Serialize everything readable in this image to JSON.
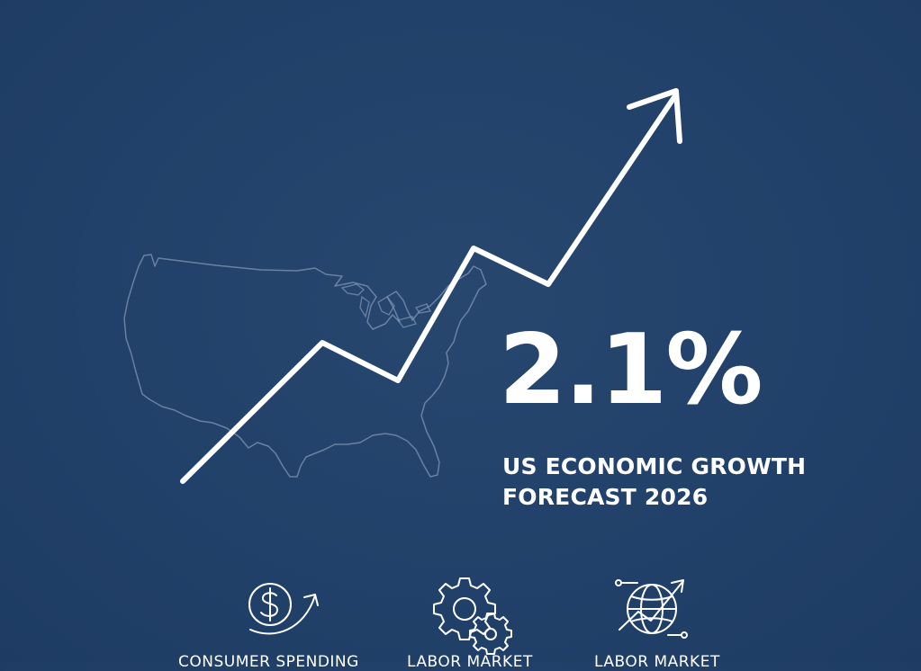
{
  "headline": {
    "value": "2.1%",
    "caption_line1": "US ECONOMIC GROWTH",
    "caption_line2": "FORECAST 2026"
  },
  "categories": [
    {
      "label": "CONSUMER SPENDING",
      "icon": "dollar-circle-arrow-icon"
    },
    {
      "label": "LABOR MARKET",
      "icon": "gears-icon"
    },
    {
      "label": "LABOR MARKET",
      "icon": "globe-trend-icon"
    }
  ],
  "colors": {
    "background": "#21416a",
    "foreground": "#ffffff",
    "map_outline": "#7f94b3"
  }
}
